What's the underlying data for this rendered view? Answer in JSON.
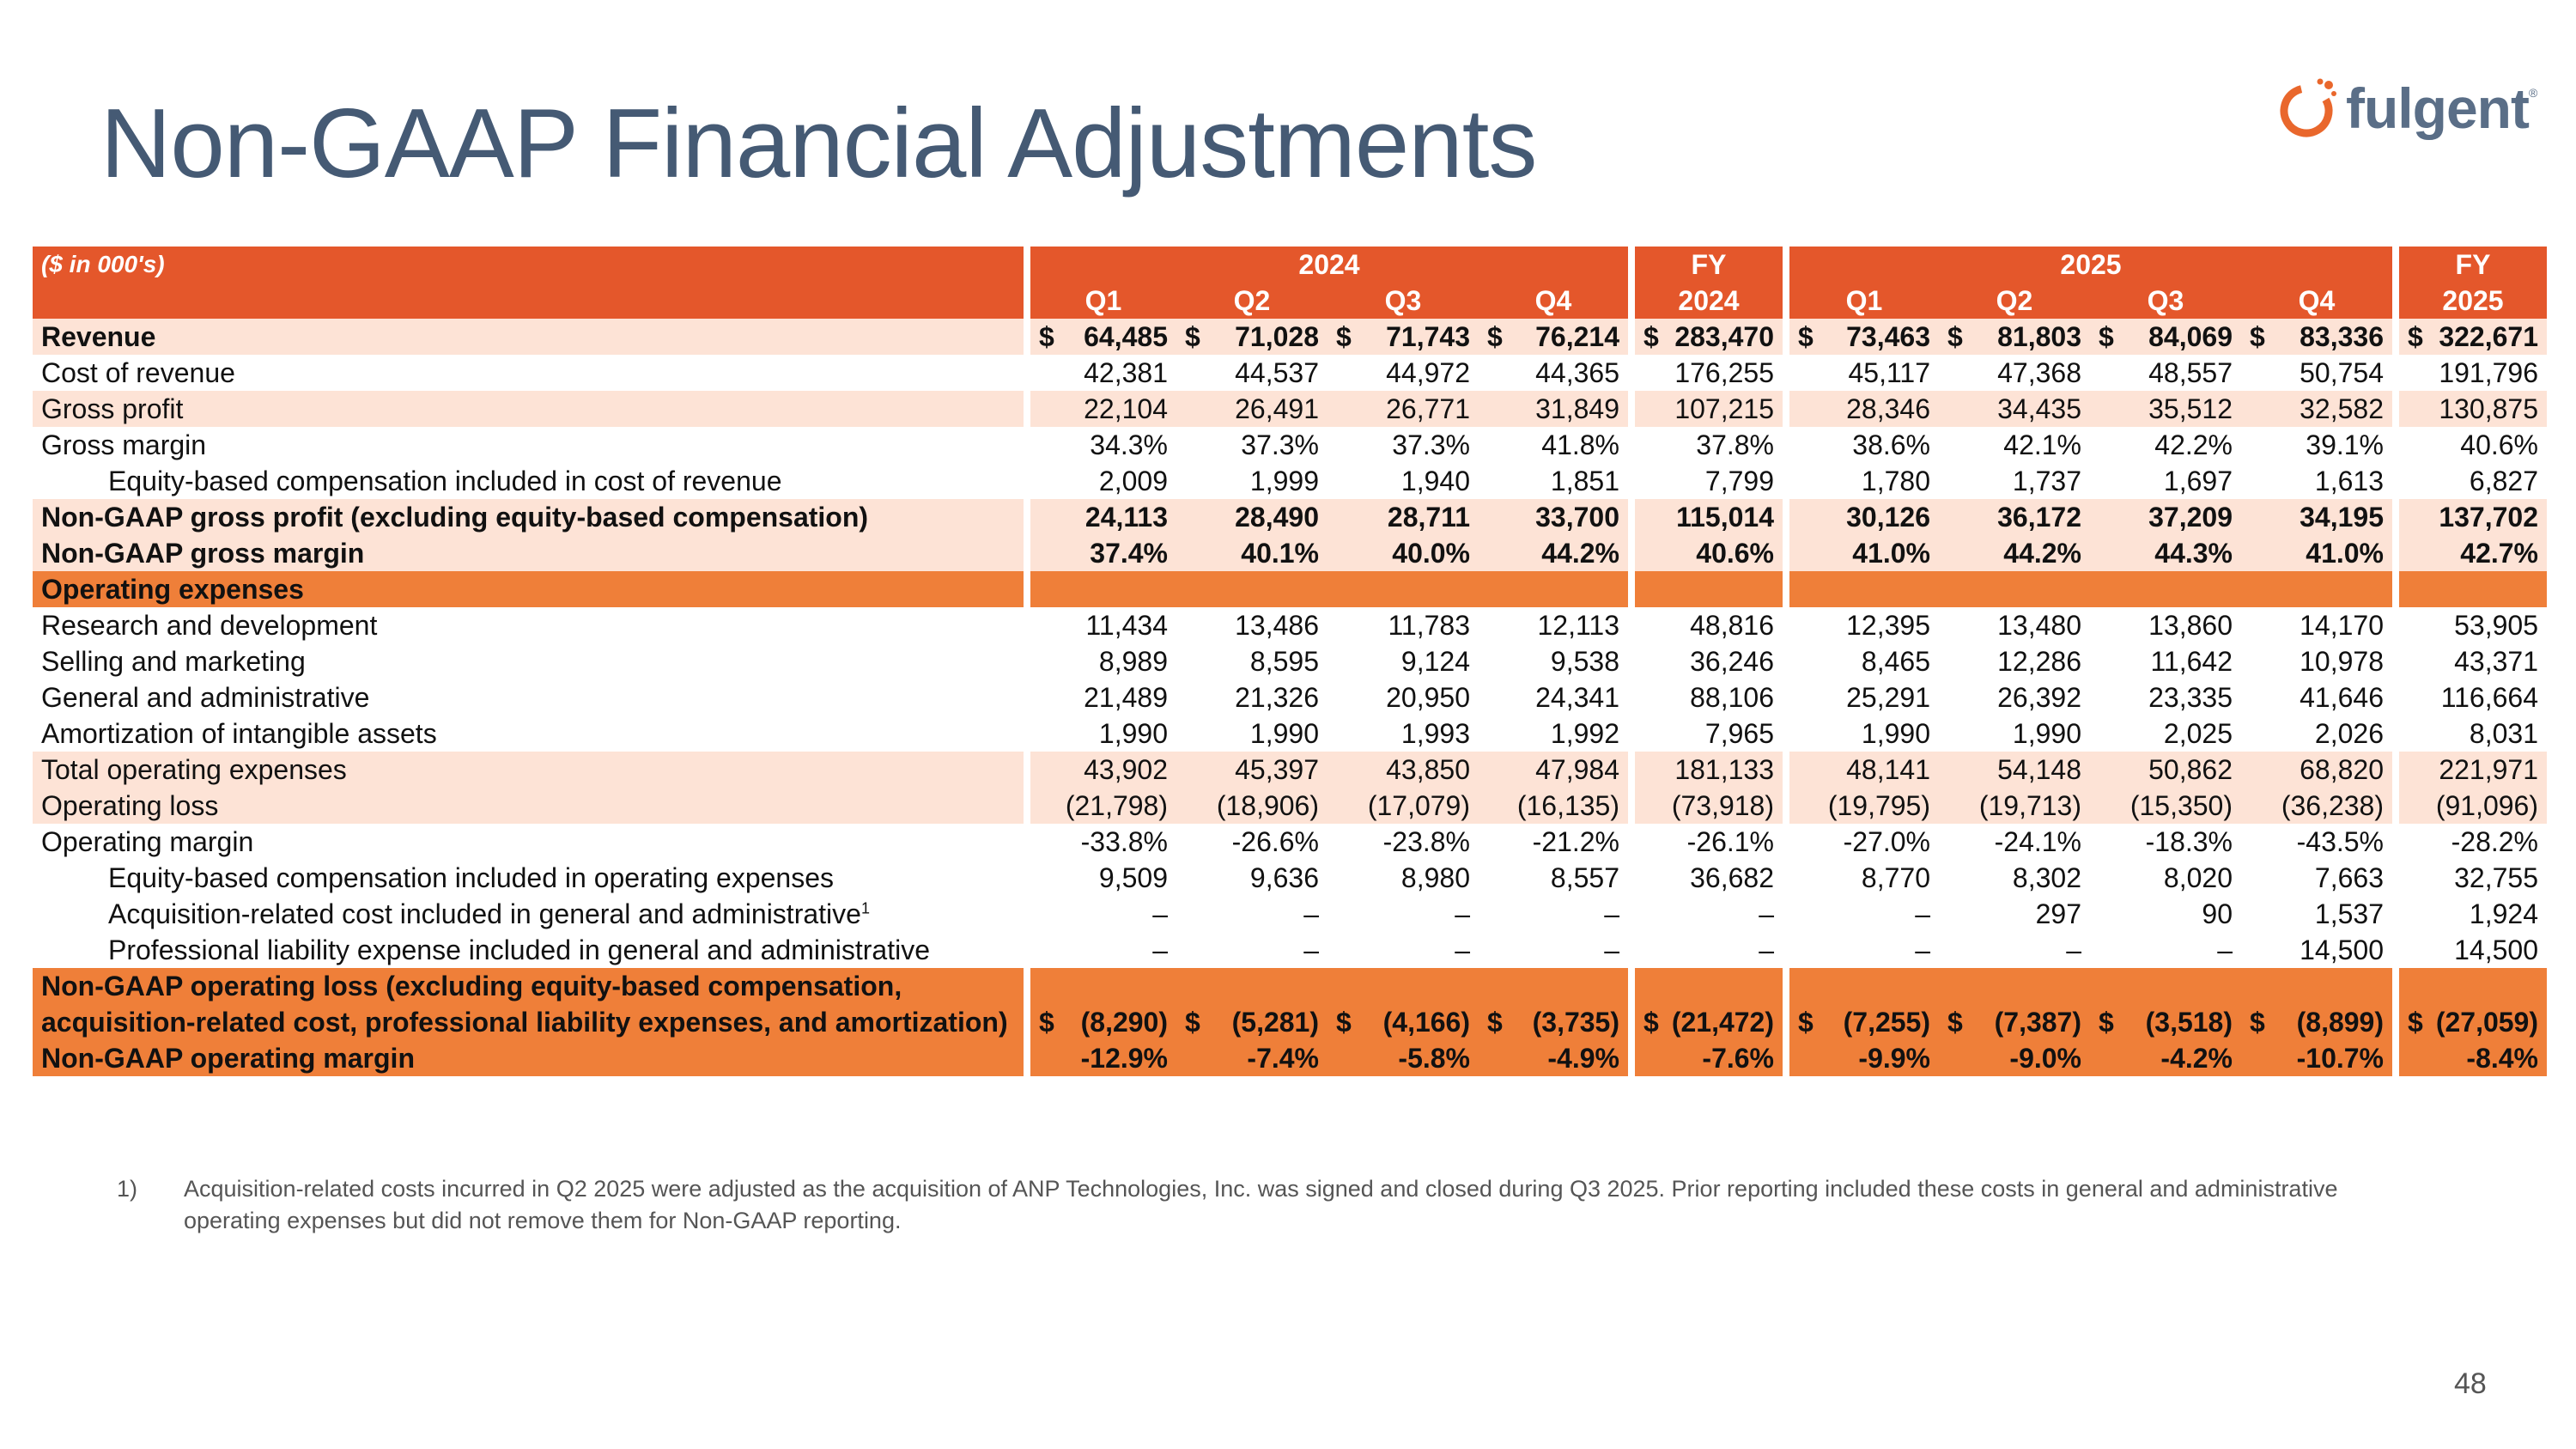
{
  "slide": {
    "title": "Non-GAAP Financial Adjustments",
    "page_number": "48",
    "logo_text": "fulgent",
    "logo_mark": "®"
  },
  "table": {
    "unit_label": "($ in 000's)",
    "year_2024": "2024",
    "year_2025": "2025",
    "fy_label": "FY",
    "fy_2024": "2024",
    "fy_2025": "2025",
    "quarters": [
      "Q1",
      "Q2",
      "Q3",
      "Q4"
    ],
    "rows": [
      {
        "label": "Revenue",
        "values": [
          "64,485",
          "71,028",
          "71,743",
          "76,214",
          "283,470",
          "73,463",
          "81,803",
          "84,069",
          "83,336",
          "322,671"
        ]
      },
      {
        "label": "Cost of revenue",
        "values": [
          "42,381",
          "44,537",
          "44,972",
          "44,365",
          "176,255",
          "45,117",
          "47,368",
          "48,557",
          "50,754",
          "191,796"
        ]
      },
      {
        "label": "Gross profit",
        "values": [
          "22,104",
          "26,491",
          "26,771",
          "31,849",
          "107,215",
          "28,346",
          "34,435",
          "35,512",
          "32,582",
          "130,875"
        ]
      },
      {
        "label": "Gross margin",
        "values": [
          "34.3%",
          "37.3%",
          "37.3%",
          "41.8%",
          "37.8%",
          "38.6%",
          "42.1%",
          "42.2%",
          "39.1%",
          "40.6%"
        ]
      },
      {
        "label": "Equity-based compensation included in cost of revenue",
        "values": [
          "2,009",
          "1,999",
          "1,940",
          "1,851",
          "7,799",
          "1,780",
          "1,737",
          "1,697",
          "1,613",
          "6,827"
        ]
      },
      {
        "label": "Non-GAAP gross profit (excluding equity-based compensation)",
        "values": [
          "24,113",
          "28,490",
          "28,711",
          "33,700",
          "115,014",
          "30,126",
          "36,172",
          "37,209",
          "34,195",
          "137,702"
        ]
      },
      {
        "label": "Non-GAAP gross margin",
        "values": [
          "37.4%",
          "40.1%",
          "40.0%",
          "44.2%",
          "40.6%",
          "41.0%",
          "44.2%",
          "44.3%",
          "41.0%",
          "42.7%"
        ]
      },
      {
        "label": "Operating expenses",
        "values": [
          "",
          "",
          "",
          "",
          "",
          "",
          "",
          "",
          "",
          ""
        ]
      },
      {
        "label": "Research and development",
        "values": [
          "11,434",
          "13,486",
          "11,783",
          "12,113",
          "48,816",
          "12,395",
          "13,480",
          "13,860",
          "14,170",
          "53,905"
        ]
      },
      {
        "label": "Selling and marketing",
        "values": [
          "8,989",
          "8,595",
          "9,124",
          "9,538",
          "36,246",
          "8,465",
          "12,286",
          "11,642",
          "10,978",
          "43,371"
        ]
      },
      {
        "label": "General and administrative",
        "values": [
          "21,489",
          "21,326",
          "20,950",
          "24,341",
          "88,106",
          "25,291",
          "26,392",
          "23,335",
          "41,646",
          "116,664"
        ]
      },
      {
        "label": "Amortization of intangible assets",
        "values": [
          "1,990",
          "1,990",
          "1,993",
          "1,992",
          "7,965",
          "1,990",
          "1,990",
          "2,025",
          "2,026",
          "8,031"
        ]
      },
      {
        "label": "Total operating expenses",
        "values": [
          "43,902",
          "45,397",
          "43,850",
          "47,984",
          "181,133",
          "48,141",
          "54,148",
          "50,862",
          "68,820",
          "221,971"
        ]
      },
      {
        "label": "Operating loss",
        "values": [
          "(21,798)",
          "(18,906)",
          "(17,079)",
          "(16,135)",
          "(73,918)",
          "(19,795)",
          "(19,713)",
          "(15,350)",
          "(36,238)",
          "(91,096)"
        ]
      },
      {
        "label": "Operating margin",
        "values": [
          "-33.8%",
          "-26.6%",
          "-23.8%",
          "-21.2%",
          "-26.1%",
          "-27.0%",
          "-24.1%",
          "-18.3%",
          "-43.5%",
          "-28.2%"
        ]
      },
      {
        "label": "Equity-based compensation included in operating expenses",
        "values": [
          "9,509",
          "9,636",
          "8,980",
          "8,557",
          "36,682",
          "8,770",
          "8,302",
          "8,020",
          "7,663",
          "32,755"
        ]
      },
      {
        "label": "Acquisition-related cost included in general and administrative",
        "sup": "1",
        "values": [
          "–",
          "–",
          "–",
          "–",
          "–",
          "–",
          "297",
          "90",
          "1,537",
          "1,924"
        ]
      },
      {
        "label": "Professional liability expense included in general and administrative",
        "values": [
          "–",
          "–",
          "–",
          "–",
          "–",
          "–",
          "–",
          "–",
          "14,500",
          "14,500"
        ]
      },
      {
        "label": "Non-GAAP operating loss (excluding equity-based compensation,",
        "values": [
          "",
          "",
          "",
          "",
          "",
          "",
          "",
          "",
          "",
          ""
        ]
      },
      {
        "label": "acquisition-related cost, professional liability expenses, and amortization)",
        "values": [
          "(8,290)",
          "(5,281)",
          "(4,166)",
          "(3,735)",
          "(21,472)",
          "(7,255)",
          "(7,387)",
          "(3,518)",
          "(8,899)",
          "(27,059)"
        ]
      },
      {
        "label": "Non-GAAP operating margin",
        "values": [
          "-12.9%",
          "-7.4%",
          "-5.8%",
          "-4.9%",
          "-7.6%",
          "-9.9%",
          "-9.0%",
          "-4.2%",
          "-10.7%",
          "-8.4%"
        ]
      }
    ],
    "currency_symbol": "$"
  },
  "footnote": {
    "number": "1)",
    "text": "Acquisition-related costs incurred in Q2 2025 were adjusted as the acquisition of ANP Technologies, Inc. was signed and closed during Q3 2025. Prior reporting included these costs in general and administrative operating expenses but did not remove them for Non-GAAP reporting."
  },
  "colors": {
    "header_orange": "#e4572b",
    "section_orange": "#ef7f39",
    "light_shade": "#fde3d6",
    "title_slate": "#455a74"
  }
}
